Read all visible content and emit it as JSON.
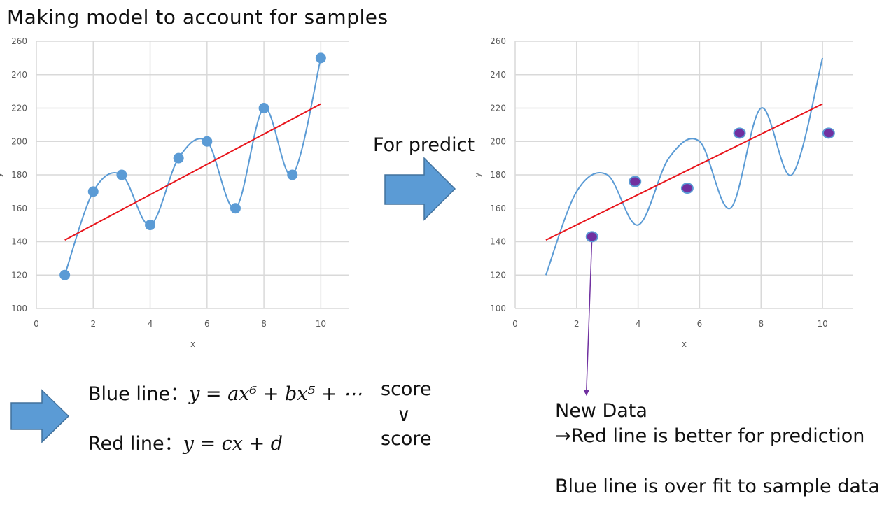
{
  "title": "Making model to account for samples",
  "predict_label": "For predict",
  "formulas": {
    "blue_label": "Blue line：",
    "blue_math": "y = ax⁶ + bx⁵ + ⋯",
    "blue_score": "score",
    "comparator": "∨",
    "red_label": "Red  line：",
    "red_math": "y = cx + d",
    "red_score": "score"
  },
  "notes": {
    "line1": "New Data",
    "line2": "→Red line is better for prediction",
    "line3": "Blue line is over fit to sample data"
  },
  "colors": {
    "blue": "#5b9bd5",
    "red": "#e8141b",
    "new_data_fill": "#7030a0",
    "grid": "#d9d9d9",
    "arrow_fill": "#5b9bd5",
    "arrow_stroke": "#41719c"
  },
  "chart_data": [
    {
      "type": "scatter",
      "xlabel": "x",
      "ylabel": "y",
      "xlim": [
        0,
        11
      ],
      "ylim": [
        100,
        260
      ],
      "xticks": [
        0,
        2,
        4,
        6,
        8,
        10
      ],
      "yticks": [
        100,
        120,
        140,
        160,
        180,
        200,
        220,
        240,
        260
      ],
      "grid": true,
      "samples": {
        "x": [
          1,
          2,
          3,
          4,
          5,
          6,
          7,
          8,
          9,
          10
        ],
        "y": [
          120,
          170,
          180,
          150,
          190,
          200,
          160,
          220,
          180,
          250
        ]
      },
      "curve": {
        "x": [
          1,
          2,
          3,
          4,
          5,
          6,
          7,
          8,
          9,
          10
        ],
        "y": [
          120,
          170,
          180,
          150,
          190,
          200,
          160,
          220,
          180,
          250
        ]
      },
      "linear_fit": {
        "x": [
          1,
          10
        ],
        "y": [
          141,
          222.5
        ]
      }
    },
    {
      "type": "scatter",
      "xlabel": "x",
      "ylabel": "y",
      "xlim": [
        0,
        11
      ],
      "ylim": [
        100,
        260
      ],
      "xticks": [
        0,
        2,
        4,
        6,
        8,
        10
      ],
      "yticks": [
        100,
        120,
        140,
        160,
        180,
        200,
        220,
        240,
        260
      ],
      "grid": true,
      "new_data": {
        "x": [
          2.5,
          3.9,
          5.6,
          7.3,
          10.2
        ],
        "y": [
          143,
          176,
          172,
          205,
          205
        ]
      },
      "curve": {
        "x": [
          1,
          2,
          3,
          4,
          5,
          6,
          7,
          8,
          9,
          10
        ],
        "y": [
          120,
          170,
          180,
          150,
          190,
          200,
          160,
          220,
          180,
          250
        ]
      },
      "linear_fit": {
        "x": [
          1,
          10
        ],
        "y": [
          141,
          222.5
        ]
      }
    }
  ]
}
